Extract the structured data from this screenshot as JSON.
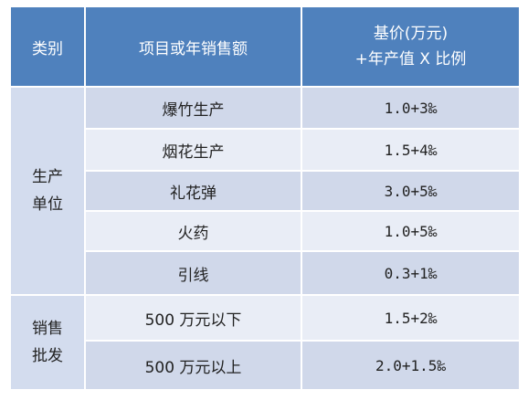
{
  "header": {
    "col1": "类别",
    "col2": "项目或年销售额",
    "col3_line1": "基价(万元)",
    "col3_line2": "+年产值 X 比例"
  },
  "groups": [
    {
      "label_line1": "生产",
      "label_line2": "单位"
    },
    {
      "label_line1": "销售",
      "label_line2": "批发"
    }
  ],
  "rows": [
    {
      "item": "爆竹生产",
      "value": "1.0+3‰"
    },
    {
      "item": "烟花生产",
      "value": "1.5+4‰"
    },
    {
      "item": "礼花弹",
      "value": "3.0+5‰"
    },
    {
      "item": "火药",
      "value": "1.0+5‰"
    },
    {
      "item": "引线",
      "value": "0.3+1‰"
    },
    {
      "item": "500 万元以下",
      "value": "1.5+2‰"
    },
    {
      "item": "500 万元以上",
      "value": "2.0+1.5‰"
    }
  ],
  "colors": {
    "header_bg": "#4f81bd",
    "category_bg": "#d3dcee",
    "row_dark": "#d0d8ea",
    "row_light": "#e9edf6"
  }
}
